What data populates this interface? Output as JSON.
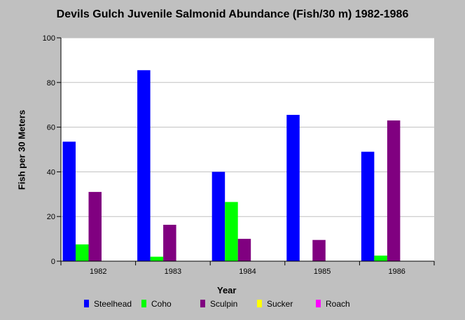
{
  "chart_data": {
    "type": "bar",
    "title": "Devils Gulch Juvenile Salmonid Abundance (Fish/30 m) 1982-1986",
    "xlabel": "Year",
    "ylabel": "Fish per 30 Meters",
    "categories": [
      "1982",
      "1983",
      "1984",
      "1985",
      "1986"
    ],
    "ylim": [
      0,
      100
    ],
    "yticks": [
      0,
      20,
      40,
      60,
      80,
      100
    ],
    "grid": true,
    "legend_position": "bottom",
    "series": [
      {
        "name": "Steelhead",
        "color": "#0000ff",
        "values": [
          53.5,
          85.5,
          40,
          65.5,
          49
        ]
      },
      {
        "name": "Coho",
        "color": "#00ff00",
        "values": [
          7.5,
          2,
          26.5,
          0,
          2.5
        ]
      },
      {
        "name": "Sculpin",
        "color": "#800080",
        "values": [
          31,
          16.3,
          10,
          9.5,
          63
        ]
      },
      {
        "name": "Sucker",
        "color": "#ffff00",
        "values": [
          0,
          0,
          0,
          0,
          0
        ]
      },
      {
        "name": "Roach",
        "color": "#ff00ff",
        "values": [
          0,
          0,
          0,
          0,
          0
        ]
      }
    ]
  }
}
